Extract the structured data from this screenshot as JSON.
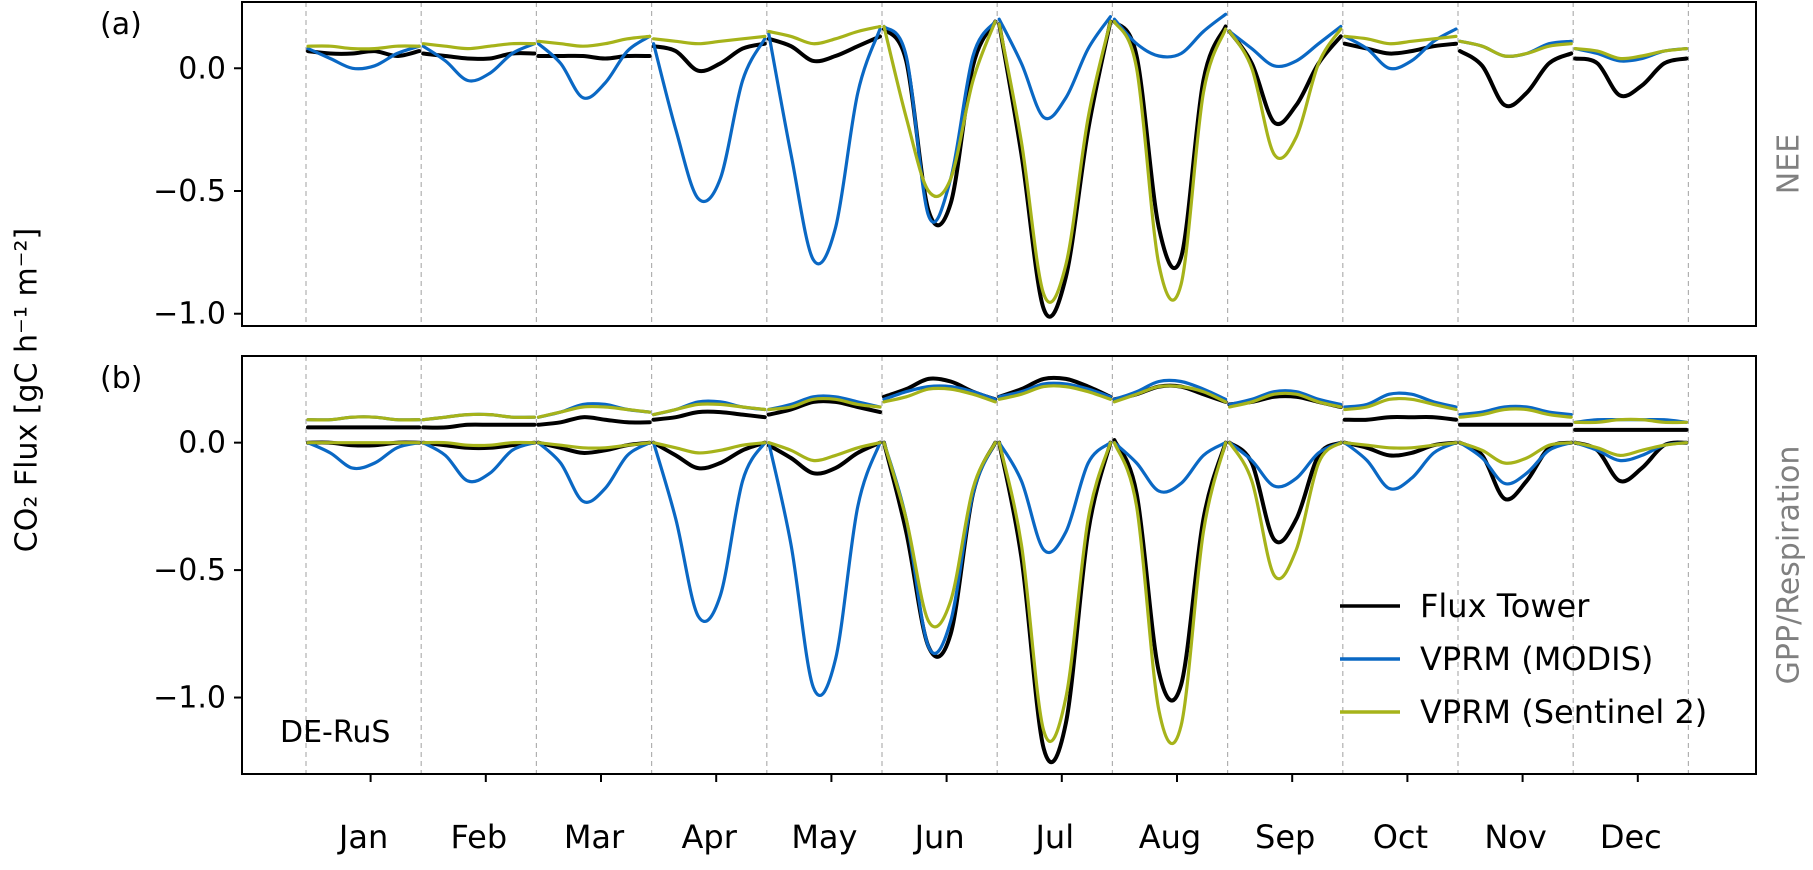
{
  "figure": {
    "y_axis_label": "CO₂ Flux [gC h⁻¹ m⁻²]",
    "site_label": "DE-RuS",
    "months": [
      "Jan",
      "Feb",
      "Mar",
      "Apr",
      "May",
      "Jun",
      "Jul",
      "Aug",
      "Sep",
      "Oct",
      "Nov",
      "Dec"
    ],
    "legend": [
      "Flux Tower",
      "VPRM (MODIS)",
      "VPRM (Sentinel 2)"
    ],
    "colors": {
      "Flux Tower": "#000000",
      "VPRM (MODIS)": "#0a68c4",
      "VPRM (Sentinel 2)": "#a6b31a",
      "panel_label": "#808080"
    }
  },
  "chart_data": [
    {
      "type": "line",
      "panel_tag": "(a)",
      "side_label": "NEE",
      "x_unit": "hour of day, repeated for each month",
      "ylim": [
        -1.05,
        0.27
      ],
      "yticks": [
        0.0,
        -0.5,
        -1.0
      ],
      "ytick_labels": [
        "0.0",
        "−0.5",
        "−1.0"
      ],
      "grid": "vertical dashed separators between months",
      "series": [
        {
          "name": "Flux Tower",
          "values": {
            "Jan": [
              0.07,
              0.06,
              0.06,
              0.07,
              0.05,
              0.07
            ],
            "Feb": [
              0.06,
              0.05,
              0.04,
              0.04,
              0.06,
              0.06
            ],
            "Mar": [
              0.05,
              0.05,
              0.05,
              0.04,
              0.05,
              0.05
            ],
            "Apr": [
              0.09,
              0.07,
              -0.01,
              0.02,
              0.08,
              0.1
            ],
            "May": [
              0.12,
              0.09,
              0.03,
              0.05,
              0.09,
              0.13
            ],
            "Jun": [
              0.16,
              0.03,
              -0.58,
              -0.55,
              0.01,
              0.19
            ],
            "Jul": [
              0.18,
              -0.35,
              -0.98,
              -0.85,
              -0.25,
              0.19
            ],
            "Aug": [
              0.19,
              0.05,
              -0.65,
              -0.77,
              -0.05,
              0.17
            ],
            "Sep": [
              0.15,
              0.02,
              -0.22,
              -0.15,
              0.02,
              0.13
            ],
            "Oct": [
              0.1,
              0.08,
              0.06,
              0.07,
              0.09,
              0.1
            ],
            "Nov": [
              0.07,
              0.01,
              -0.15,
              -0.1,
              0.02,
              0.06
            ],
            "Dec": [
              0.04,
              0.02,
              -0.11,
              -0.07,
              0.02,
              0.04
            ]
          }
        },
        {
          "name": "VPRM (MODIS)",
          "values": {
            "Jan": [
              0.08,
              0.04,
              0.0,
              0.01,
              0.06,
              0.09
            ],
            "Feb": [
              0.09,
              0.03,
              -0.05,
              -0.02,
              0.06,
              0.1
            ],
            "Mar": [
              0.1,
              0.02,
              -0.12,
              -0.06,
              0.07,
              0.13
            ],
            "Apr": [
              0.1,
              -0.25,
              -0.53,
              -0.45,
              -0.05,
              0.12
            ],
            "May": [
              0.14,
              -0.35,
              -0.78,
              -0.65,
              -0.1,
              0.16
            ],
            "Jun": [
              0.17,
              0.05,
              -0.6,
              -0.45,
              0.05,
              0.19
            ],
            "Jul": [
              0.2,
              0.02,
              -0.2,
              -0.12,
              0.08,
              0.21
            ],
            "Aug": [
              0.2,
              0.1,
              0.05,
              0.06,
              0.15,
              0.22
            ],
            "Sep": [
              0.15,
              0.08,
              0.01,
              0.03,
              0.1,
              0.17
            ],
            "Oct": [
              0.13,
              0.08,
              0.0,
              0.03,
              0.11,
              0.16
            ],
            "Nov": [
              0.11,
              0.09,
              0.05,
              0.06,
              0.1,
              0.11
            ],
            "Dec": [
              0.08,
              0.06,
              0.03,
              0.04,
              0.07,
              0.08
            ]
          }
        },
        {
          "name": "VPRM (Sentinel 2)",
          "values": {
            "Jan": [
              0.09,
              0.09,
              0.08,
              0.08,
              0.09,
              0.09
            ],
            "Feb": [
              0.1,
              0.09,
              0.08,
              0.09,
              0.1,
              0.1
            ],
            "Mar": [
              0.11,
              0.1,
              0.09,
              0.1,
              0.12,
              0.13
            ],
            "Apr": [
              0.12,
              0.11,
              0.1,
              0.11,
              0.12,
              0.13
            ],
            "May": [
              0.15,
              0.13,
              0.1,
              0.12,
              0.15,
              0.17
            ],
            "Jun": [
              0.17,
              -0.2,
              -0.5,
              -0.45,
              -0.05,
              0.19
            ],
            "Jul": [
              0.18,
              -0.3,
              -0.92,
              -0.8,
              -0.2,
              0.19
            ],
            "Aug": [
              0.19,
              0.0,
              -0.8,
              -0.88,
              -0.1,
              0.16
            ],
            "Sep": [
              0.15,
              0.0,
              -0.35,
              -0.28,
              0.02,
              0.16
            ],
            "Oct": [
              0.13,
              0.12,
              0.1,
              0.11,
              0.12,
              0.13
            ],
            "Nov": [
              0.11,
              0.09,
              0.05,
              0.06,
              0.09,
              0.1
            ],
            "Dec": [
              0.08,
              0.07,
              0.04,
              0.05,
              0.07,
              0.08
            ]
          }
        }
      ]
    },
    {
      "type": "line",
      "panel_tag": "(b)",
      "side_label": "GPP/Respiration",
      "x_unit": "hour of day, repeated for each month",
      "ylim": [
        -1.3,
        0.34
      ],
      "yticks": [
        0.0,
        -0.5,
        -1.0
      ],
      "ytick_labels": [
        "0.0",
        "−0.5",
        "−1.0"
      ],
      "grid": "vertical dashed separators between months",
      "legend_position": "lower-right",
      "series": [
        {
          "name": "Flux Tower",
          "component": "respiration",
          "values": {
            "Jan": [
              0.06,
              0.06,
              0.06,
              0.06,
              0.06,
              0.06
            ],
            "Feb": [
              0.06,
              0.06,
              0.07,
              0.07,
              0.07,
              0.07
            ],
            "Mar": [
              0.07,
              0.08,
              0.1,
              0.09,
              0.08,
              0.08
            ],
            "Apr": [
              0.09,
              0.1,
              0.12,
              0.12,
              0.11,
              0.1
            ],
            "May": [
              0.11,
              0.13,
              0.16,
              0.16,
              0.14,
              0.12
            ],
            "Jun": [
              0.18,
              0.21,
              0.25,
              0.24,
              0.2,
              0.17
            ],
            "Jul": [
              0.18,
              0.21,
              0.25,
              0.25,
              0.22,
              0.18
            ],
            "Aug": [
              0.17,
              0.19,
              0.22,
              0.22,
              0.19,
              0.16
            ],
            "Sep": [
              0.15,
              0.16,
              0.18,
              0.18,
              0.16,
              0.14
            ],
            "Oct": [
              0.09,
              0.09,
              0.1,
              0.1,
              0.1,
              0.09
            ],
            "Nov": [
              0.07,
              0.07,
              0.07,
              0.07,
              0.07,
              0.07
            ],
            "Dec": [
              0.05,
              0.05,
              0.05,
              0.05,
              0.05,
              0.05
            ]
          }
        },
        {
          "name": "VPRM (MODIS)",
          "component": "respiration",
          "values": {
            "Jan": [
              0.09,
              0.09,
              0.1,
              0.1,
              0.09,
              0.09
            ],
            "Feb": [
              0.09,
              0.1,
              0.11,
              0.11,
              0.1,
              0.1
            ],
            "Mar": [
              0.1,
              0.12,
              0.15,
              0.15,
              0.13,
              0.12
            ],
            "Apr": [
              0.11,
              0.13,
              0.16,
              0.16,
              0.14,
              0.13
            ],
            "May": [
              0.13,
              0.15,
              0.18,
              0.18,
              0.16,
              0.14
            ],
            "Jun": [
              0.17,
              0.2,
              0.22,
              0.22,
              0.2,
              0.17
            ],
            "Jul": [
              0.18,
              0.2,
              0.23,
              0.23,
              0.21,
              0.18
            ],
            "Aug": [
              0.17,
              0.2,
              0.24,
              0.24,
              0.21,
              0.17
            ],
            "Sep": [
              0.15,
              0.17,
              0.2,
              0.2,
              0.17,
              0.15
            ],
            "Oct": [
              0.14,
              0.15,
              0.19,
              0.19,
              0.16,
              0.14
            ],
            "Nov": [
              0.11,
              0.12,
              0.14,
              0.14,
              0.12,
              0.11
            ],
            "Dec": [
              0.08,
              0.09,
              0.09,
              0.09,
              0.09,
              0.08
            ]
          }
        },
        {
          "name": "VPRM (Sentinel 2)",
          "component": "respiration",
          "values": {
            "Jan": [
              0.09,
              0.09,
              0.1,
              0.1,
              0.09,
              0.09
            ],
            "Feb": [
              0.09,
              0.1,
              0.11,
              0.11,
              0.1,
              0.1
            ],
            "Mar": [
              0.1,
              0.12,
              0.14,
              0.14,
              0.13,
              0.12
            ],
            "Apr": [
              0.11,
              0.13,
              0.15,
              0.15,
              0.14,
              0.13
            ],
            "May": [
              0.13,
              0.14,
              0.17,
              0.17,
              0.15,
              0.14
            ],
            "Jun": [
              0.16,
              0.18,
              0.21,
              0.21,
              0.19,
              0.16
            ],
            "Jul": [
              0.17,
              0.19,
              0.22,
              0.22,
              0.2,
              0.17
            ],
            "Aug": [
              0.16,
              0.19,
              0.22,
              0.22,
              0.2,
              0.16
            ],
            "Sep": [
              0.14,
              0.16,
              0.19,
              0.19,
              0.16,
              0.14
            ],
            "Oct": [
              0.13,
              0.14,
              0.17,
              0.17,
              0.15,
              0.13
            ],
            "Nov": [
              0.1,
              0.11,
              0.13,
              0.13,
              0.11,
              0.1
            ],
            "Dec": [
              0.08,
              0.08,
              0.09,
              0.09,
              0.08,
              0.08
            ]
          }
        },
        {
          "name": "Flux Tower",
          "component": "GPP",
          "values": {
            "Jan": [
              0.0,
              0.0,
              -0.01,
              -0.01,
              0.0,
              0.0
            ],
            "Feb": [
              0.0,
              -0.01,
              -0.02,
              -0.02,
              -0.01,
              0.0
            ],
            "Mar": [
              0.0,
              -0.02,
              -0.04,
              -0.03,
              -0.01,
              0.0
            ],
            "Apr": [
              0.0,
              -0.05,
              -0.1,
              -0.08,
              -0.03,
              0.0
            ],
            "May": [
              -0.01,
              -0.06,
              -0.12,
              -0.1,
              -0.04,
              0.0
            ],
            "Jun": [
              0.0,
              -0.35,
              -0.8,
              -0.75,
              -0.2,
              0.0
            ],
            "Jul": [
              0.0,
              -0.45,
              -1.2,
              -1.1,
              -0.35,
              0.0
            ],
            "Aug": [
              0.01,
              -0.2,
              -0.9,
              -0.95,
              -0.3,
              0.0
            ],
            "Sep": [
              0.0,
              -0.08,
              -0.38,
              -0.3,
              -0.05,
              0.0
            ],
            "Oct": [
              0.0,
              -0.02,
              -0.05,
              -0.04,
              -0.01,
              0.0
            ],
            "Nov": [
              0.0,
              -0.05,
              -0.22,
              -0.15,
              -0.02,
              0.0
            ],
            "Dec": [
              0.0,
              -0.03,
              -0.15,
              -0.1,
              -0.01,
              0.0
            ]
          }
        },
        {
          "name": "VPRM (MODIS)",
          "component": "GPP",
          "values": {
            "Jan": [
              0.0,
              -0.04,
              -0.1,
              -0.08,
              -0.02,
              0.0
            ],
            "Feb": [
              0.0,
              -0.05,
              -0.15,
              -0.12,
              -0.03,
              0.0
            ],
            "Mar": [
              0.0,
              -0.08,
              -0.23,
              -0.18,
              -0.05,
              0.0
            ],
            "Apr": [
              0.0,
              -0.3,
              -0.68,
              -0.6,
              -0.15,
              0.0
            ],
            "May": [
              0.0,
              -0.4,
              -0.96,
              -0.85,
              -0.25,
              0.0
            ],
            "Jun": [
              0.0,
              -0.3,
              -0.8,
              -0.7,
              -0.2,
              0.0
            ],
            "Jul": [
              0.0,
              -0.15,
              -0.42,
              -0.35,
              -0.08,
              0.0
            ],
            "Aug": [
              0.0,
              -0.08,
              -0.19,
              -0.16,
              -0.05,
              0.0
            ],
            "Sep": [
              0.0,
              -0.07,
              -0.17,
              -0.14,
              -0.04,
              0.0
            ],
            "Oct": [
              0.0,
              -0.07,
              -0.18,
              -0.14,
              -0.04,
              0.0
            ],
            "Nov": [
              0.0,
              -0.06,
              -0.16,
              -0.12,
              -0.03,
              0.0
            ],
            "Dec": [
              0.0,
              -0.03,
              -0.07,
              -0.05,
              -0.01,
              0.0
            ]
          }
        },
        {
          "name": "VPRM (Sentinel 2)",
          "component": "GPP",
          "values": {
            "Jan": [
              0.0,
              0.0,
              0.0,
              0.0,
              0.0,
              0.0
            ],
            "Feb": [
              0.0,
              0.0,
              -0.01,
              -0.01,
              0.0,
              0.0
            ],
            "Mar": [
              0.0,
              -0.01,
              -0.02,
              -0.02,
              -0.01,
              0.0
            ],
            "Apr": [
              0.0,
              -0.02,
              -0.04,
              -0.03,
              -0.01,
              0.0
            ],
            "May": [
              0.0,
              -0.03,
              -0.07,
              -0.05,
              -0.02,
              0.0
            ],
            "Jun": [
              0.0,
              -0.3,
              -0.7,
              -0.62,
              -0.18,
              0.0
            ],
            "Jul": [
              0.0,
              -0.4,
              -1.13,
              -1.0,
              -0.3,
              0.0
            ],
            "Aug": [
              0.0,
              -0.25,
              -1.05,
              -1.11,
              -0.35,
              0.0
            ],
            "Sep": [
              0.0,
              -0.15,
              -0.52,
              -0.42,
              -0.08,
              0.0
            ],
            "Oct": [
              0.0,
              -0.01,
              -0.02,
              -0.02,
              -0.01,
              0.0
            ],
            "Nov": [
              0.0,
              -0.03,
              -0.08,
              -0.06,
              -0.01,
              0.0
            ],
            "Dec": [
              0.0,
              -0.02,
              -0.05,
              -0.03,
              -0.01,
              0.0
            ]
          }
        }
      ]
    }
  ]
}
